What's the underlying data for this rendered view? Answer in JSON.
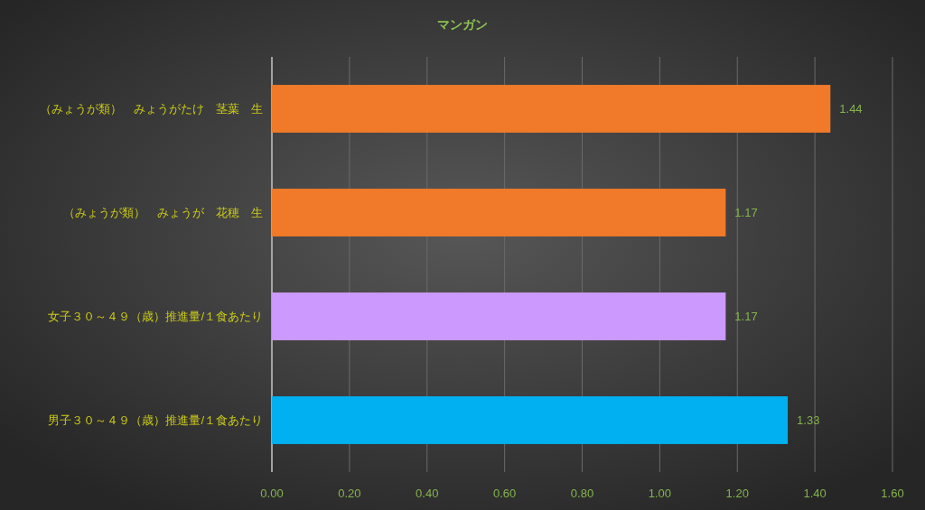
{
  "chart_data": {
    "type": "bar",
    "orientation": "horizontal",
    "title": "マンガン",
    "categories": [
      "（みょうが類）　みょうがたけ　茎葉　生",
      "（みょうが類）　みょうが　花穂　生",
      "女子３０～４９（歳）推進量/１食あたり",
      "男子３０～４９（歳）推進量/１食あたり"
    ],
    "values": [
      1.44,
      1.17,
      1.17,
      1.33
    ],
    "colors": [
      "#f07a2a",
      "#f07a2a",
      "#cc99ff",
      "#00b0f0"
    ],
    "xlim": [
      0,
      1.6
    ],
    "xticks": [
      {
        "value": 0,
        "label": "0.00"
      },
      {
        "value": 0.2,
        "label": "0.20"
      },
      {
        "value": 0.4,
        "label": "0.40"
      },
      {
        "value": 0.6,
        "label": "0.60"
      },
      {
        "value": 0.8,
        "label": "0.80"
      },
      {
        "value": 1,
        "label": "1.00"
      },
      {
        "value": 1.2,
        "label": "1.20"
      },
      {
        "value": 1.4,
        "label": "1.40"
      },
      {
        "value": 1.6,
        "label": "1.60"
      }
    ],
    "grid": "x",
    "data_labels": true
  }
}
